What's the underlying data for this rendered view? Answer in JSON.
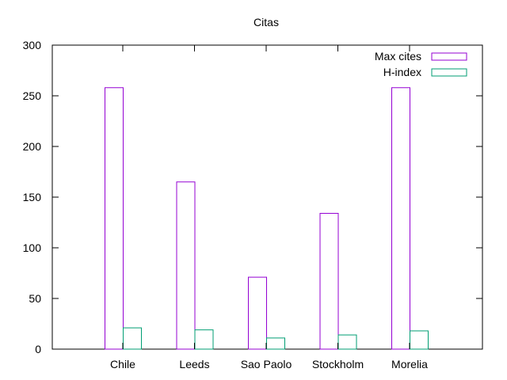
{
  "chart_data": {
    "type": "bar",
    "title": "Citas",
    "xlabel": "",
    "ylabel": "",
    "categories": [
      "Chile",
      "Leeds",
      "Sao Paolo",
      "Stockholm",
      "Morelia"
    ],
    "series": [
      {
        "name": "Max cites",
        "values": [
          258,
          165,
          71,
          134,
          258
        ],
        "color": "#9400d3"
      },
      {
        "name": "H-index",
        "values": [
          21,
          19,
          11,
          14,
          18
        ],
        "color": "#009e73"
      }
    ],
    "ylim": [
      0,
      300
    ],
    "yticks": [
      "0",
      "50",
      "100",
      "150",
      "200",
      "250",
      "300"
    ],
    "grid": false,
    "legend_position": "top-right"
  }
}
